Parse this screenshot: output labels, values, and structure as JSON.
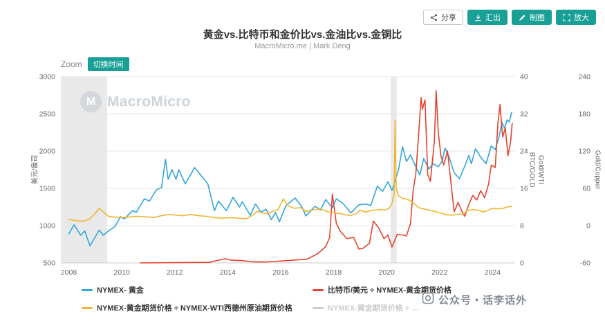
{
  "header": {
    "title": "黄金vs.比特币和金价比vs.金油比vs.金铜比",
    "subtitle": "MacroMicro.me | Mark Deng",
    "actions": [
      {
        "id": "share",
        "label": "分享"
      },
      {
        "id": "export",
        "label": "汇出"
      },
      {
        "id": "draw",
        "label": "制图"
      },
      {
        "id": "enlarge",
        "label": "放大"
      }
    ]
  },
  "toolbar": {
    "zoom_label": "Zoom",
    "switch_time_label": "切换时间"
  },
  "watermarks": {
    "logo": "MacroMicro",
    "bottom": "公众号・话李话外"
  },
  "colors": {
    "accent": "#18a096",
    "gold": "#31a5dc",
    "btc_ratio": "#e2432c",
    "wti_ratio": "#f0b42f",
    "disabled": "#cccccc"
  },
  "legend": {
    "rows": [
      [
        {
          "label": "NYMEX- 黄金",
          "color": "#31a5dc",
          "disabled": false
        },
        {
          "label": "比特币/美元 ÷ NYMEX-黄金期货价格",
          "color": "#e2432c",
          "disabled": false
        }
      ],
      [
        {
          "label": "NYMEX-黄金期货价格 ÷ NYMEX-WTI西德州原油期货价格",
          "color": "#f0b42f",
          "disabled": false
        },
        {
          "label": "NYMEX-黄金期货价格 ÷ …",
          "color": "#cccccc",
          "disabled": true
        }
      ]
    ]
  },
  "chart_data": {
    "type": "line",
    "title": "黄金vs.比特币和金价比vs.金油比vs.金铜比",
    "subtitle": "MacroMicro.me | Mark Deng",
    "grid": true,
    "legend_position": "bottom",
    "x": {
      "range": [
        2007.7,
        2024.85
      ],
      "ticks": [
        2008,
        2010,
        2012,
        2014,
        2016,
        2018,
        2020,
        2022,
        2024
      ]
    },
    "bands": [
      {
        "from": 2007.7,
        "to": 2009.45
      },
      {
        "from": 2020.15,
        "to": 2020.38
      }
    ],
    "axes": {
      "left": {
        "title": "美元/盎司",
        "range": [
          500,
          3000
        ],
        "ticks": [
          500,
          1000,
          1500,
          2000,
          2500,
          3000
        ]
      },
      "right_btc": {
        "title": "BTC/GOLD",
        "range": [
          0,
          40
        ],
        "ticks": [
          0,
          8,
          16,
          24,
          32,
          40
        ]
      },
      "right_wti": {
        "title": "Gold/WTI",
        "range": [
          -60,
          240
        ],
        "ticks": [
          -60,
          0,
          60,
          120,
          180,
          240
        ]
      },
      "right_copper": {
        "title": "Gold/Copper"
      }
    },
    "series": [
      {
        "name": "NYMEX- 黄金",
        "color": "#31a5dc",
        "axis": "left",
        "visible": true,
        "points": [
          [
            2008.0,
            890
          ],
          [
            2008.2,
            1010
          ],
          [
            2008.45,
            870
          ],
          [
            2008.6,
            930
          ],
          [
            2008.8,
            730
          ],
          [
            2008.95,
            820
          ],
          [
            2009.15,
            940
          ],
          [
            2009.3,
            870
          ],
          [
            2009.5,
            930
          ],
          [
            2009.75,
            990
          ],
          [
            2009.95,
            1120
          ],
          [
            2010.1,
            1090
          ],
          [
            2010.4,
            1200
          ],
          [
            2010.55,
            1180
          ],
          [
            2010.85,
            1360
          ],
          [
            2011.05,
            1330
          ],
          [
            2011.3,
            1480
          ],
          [
            2011.5,
            1510
          ],
          [
            2011.65,
            1890
          ],
          [
            2011.75,
            1620
          ],
          [
            2011.9,
            1750
          ],
          [
            2012.05,
            1620
          ],
          [
            2012.15,
            1750
          ],
          [
            2012.4,
            1560
          ],
          [
            2012.75,
            1780
          ],
          [
            2013.0,
            1670
          ],
          [
            2013.25,
            1560
          ],
          [
            2013.5,
            1200
          ],
          [
            2013.65,
            1330
          ],
          [
            2013.95,
            1200
          ],
          [
            2014.2,
            1380
          ],
          [
            2014.45,
            1250
          ],
          [
            2014.55,
            1320
          ],
          [
            2014.85,
            1140
          ],
          [
            2015.05,
            1290
          ],
          [
            2015.25,
            1180
          ],
          [
            2015.45,
            1220
          ],
          [
            2015.65,
            1080
          ],
          [
            2015.8,
            1180
          ],
          [
            2015.95,
            1050
          ],
          [
            2016.2,
            1270
          ],
          [
            2016.55,
            1370
          ],
          [
            2016.8,
            1250
          ],
          [
            2016.95,
            1130
          ],
          [
            2017.3,
            1260
          ],
          [
            2017.5,
            1210
          ],
          [
            2017.7,
            1350
          ],
          [
            2017.95,
            1240
          ],
          [
            2018.1,
            1360
          ],
          [
            2018.35,
            1300
          ],
          [
            2018.65,
            1170
          ],
          [
            2018.95,
            1280
          ],
          [
            2019.2,
            1290
          ],
          [
            2019.4,
            1270
          ],
          [
            2019.65,
            1530
          ],
          [
            2019.85,
            1460
          ],
          [
            2020.05,
            1590
          ],
          [
            2020.2,
            1470
          ],
          [
            2020.45,
            1750
          ],
          [
            2020.6,
            2060
          ],
          [
            2020.75,
            1860
          ],
          [
            2020.9,
            1950
          ],
          [
            2021.05,
            1830
          ],
          [
            2021.25,
            1680
          ],
          [
            2021.4,
            1900
          ],
          [
            2021.6,
            1760
          ],
          [
            2021.75,
            1830
          ],
          [
            2021.95,
            1790
          ],
          [
            2022.1,
            1870
          ],
          [
            2022.2,
            2040
          ],
          [
            2022.35,
            1930
          ],
          [
            2022.55,
            1710
          ],
          [
            2022.75,
            1630
          ],
          [
            2022.95,
            1800
          ],
          [
            2023.1,
            1940
          ],
          [
            2023.2,
            1830
          ],
          [
            2023.35,
            2030
          ],
          [
            2023.55,
            1920
          ],
          [
            2023.75,
            1830
          ],
          [
            2023.95,
            2070
          ],
          [
            2024.1,
            2020
          ],
          [
            2024.25,
            2200
          ],
          [
            2024.35,
            2390
          ],
          [
            2024.45,
            2310
          ],
          [
            2024.55,
            2420
          ],
          [
            2024.63,
            2390
          ],
          [
            2024.72,
            2520
          ]
        ]
      },
      {
        "name": "比特币/美元 ÷ NYMEX-黄金期货价格",
        "color": "#e2432c",
        "axis": "right_btc",
        "visible": true,
        "points": [
          [
            2010.7,
            0
          ],
          [
            2013.0,
            0.1
          ],
          [
            2013.3,
            0.1
          ],
          [
            2013.9,
            0.9
          ],
          [
            2014.1,
            0.6
          ],
          [
            2014.5,
            0.5
          ],
          [
            2015.0,
            0.2
          ],
          [
            2015.5,
            0.2
          ],
          [
            2016.0,
            0.4
          ],
          [
            2016.5,
            0.6
          ],
          [
            2017.0,
            0.8
          ],
          [
            2017.4,
            2.0
          ],
          [
            2017.7,
            3.5
          ],
          [
            2017.85,
            5.5
          ],
          [
            2017.95,
            14.8
          ],
          [
            2018.1,
            8.5
          ],
          [
            2018.25,
            6.8
          ],
          [
            2018.5,
            5.2
          ],
          [
            2018.75,
            5.5
          ],
          [
            2018.95,
            3.0
          ],
          [
            2019.1,
            3.1
          ],
          [
            2019.35,
            4.2
          ],
          [
            2019.5,
            9.0
          ],
          [
            2019.7,
            7.5
          ],
          [
            2019.9,
            5.2
          ],
          [
            2020.05,
            6.0
          ],
          [
            2020.2,
            3.4
          ],
          [
            2020.4,
            6.1
          ],
          [
            2020.6,
            6.0
          ],
          [
            2020.75,
            5.8
          ],
          [
            2020.9,
            8.5
          ],
          [
            2021.0,
            15.5
          ],
          [
            2021.1,
            19
          ],
          [
            2021.2,
            27
          ],
          [
            2021.3,
            35.5
          ],
          [
            2021.35,
            33
          ],
          [
            2021.45,
            35
          ],
          [
            2021.55,
            19
          ],
          [
            2021.65,
            17.5
          ],
          [
            2021.8,
            26
          ],
          [
            2021.87,
            37
          ],
          [
            2021.95,
            28
          ],
          [
            2022.05,
            23
          ],
          [
            2022.15,
            21
          ],
          [
            2022.3,
            24
          ],
          [
            2022.45,
            16
          ],
          [
            2022.55,
            11
          ],
          [
            2022.7,
            13
          ],
          [
            2022.85,
            11
          ],
          [
            2022.95,
            10
          ],
          [
            2023.1,
            12.5
          ],
          [
            2023.25,
            14.5
          ],
          [
            2023.4,
            13.5
          ],
          [
            2023.55,
            15.5
          ],
          [
            2023.7,
            14
          ],
          [
            2023.85,
            17
          ],
          [
            2023.95,
            21
          ],
          [
            2024.1,
            20.5
          ],
          [
            2024.2,
            30
          ],
          [
            2024.28,
            34
          ],
          [
            2024.38,
            27
          ],
          [
            2024.48,
            29
          ],
          [
            2024.58,
            23
          ],
          [
            2024.68,
            26
          ],
          [
            2024.74,
            30
          ]
        ]
      },
      {
        "name": "NYMEX-黄金期货价格 ÷ NYMEX-WTI西德州原油期货价格",
        "color": "#f0b42f",
        "axis": "right_wti",
        "visible": true,
        "points": [
          [
            2008.0,
            10
          ],
          [
            2008.3,
            8
          ],
          [
            2008.55,
            7
          ],
          [
            2008.8,
            11
          ],
          [
            2009.0,
            20
          ],
          [
            2009.15,
            28
          ],
          [
            2009.3,
            22
          ],
          [
            2009.5,
            15
          ],
          [
            2009.7,
            14
          ],
          [
            2010.0,
            13
          ],
          [
            2010.3,
            14
          ],
          [
            2010.6,
            15
          ],
          [
            2011.0,
            14
          ],
          [
            2011.2,
            13
          ],
          [
            2011.5,
            16
          ],
          [
            2011.8,
            18
          ],
          [
            2012.0,
            17
          ],
          [
            2012.3,
            16
          ],
          [
            2012.6,
            18
          ],
          [
            2012.9,
            16
          ],
          [
            2013.2,
            15
          ],
          [
            2013.5,
            13
          ],
          [
            2013.8,
            12
          ],
          [
            2014.1,
            13
          ],
          [
            2014.4,
            12
          ],
          [
            2014.7,
            11
          ],
          [
            2014.95,
            17
          ],
          [
            2015.1,
            23
          ],
          [
            2015.3,
            21
          ],
          [
            2015.5,
            19
          ],
          [
            2015.7,
            23
          ],
          [
            2015.9,
            26
          ],
          [
            2016.1,
            43
          ],
          [
            2016.25,
            33
          ],
          [
            2016.5,
            28
          ],
          [
            2016.75,
            29
          ],
          [
            2016.95,
            23
          ],
          [
            2017.2,
            25
          ],
          [
            2017.5,
            27
          ],
          [
            2017.8,
            22
          ],
          [
            2018.0,
            21
          ],
          [
            2018.3,
            19
          ],
          [
            2018.6,
            16
          ],
          [
            2018.85,
            19
          ],
          [
            2019.0,
            25
          ],
          [
            2019.2,
            22
          ],
          [
            2019.5,
            25
          ],
          [
            2019.75,
            26
          ],
          [
            2019.95,
            25
          ],
          [
            2020.1,
            28
          ],
          [
            2020.2,
            36
          ],
          [
            2020.28,
            50
          ],
          [
            2020.32,
            170
          ],
          [
            2020.36,
            60
          ],
          [
            2020.45,
            48
          ],
          [
            2020.6,
            44
          ],
          [
            2020.75,
            43
          ],
          [
            2020.9,
            40
          ],
          [
            2021.05,
            35
          ],
          [
            2021.2,
            29
          ],
          [
            2021.4,
            27
          ],
          [
            2021.6,
            25
          ],
          [
            2021.8,
            23
          ],
          [
            2022.0,
            21
          ],
          [
            2022.15,
            19
          ],
          [
            2022.3,
            17
          ],
          [
            2022.5,
            17
          ],
          [
            2022.7,
            18
          ],
          [
            2022.9,
            19
          ],
          [
            2023.05,
            24
          ],
          [
            2023.25,
            26
          ],
          [
            2023.45,
            25
          ],
          [
            2023.65,
            22
          ],
          [
            2023.85,
            25
          ],
          [
            2024.0,
            28
          ],
          [
            2024.2,
            27
          ],
          [
            2024.4,
            28
          ],
          [
            2024.55,
            30
          ],
          [
            2024.72,
            31
          ]
        ]
      },
      {
        "name": "NYMEX-黄金期货价格 ÷ …",
        "color": "#cccccc",
        "axis": "right_wti",
        "visible": false,
        "points": []
      }
    ]
  }
}
